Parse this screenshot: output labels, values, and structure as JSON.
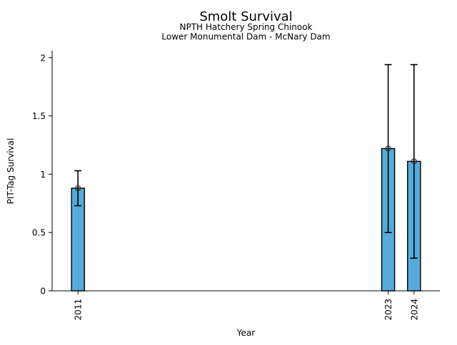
{
  "window": {
    "background": "#ffffff"
  },
  "chart_data": {
    "type": "bar",
    "title": "Smolt Survival",
    "subtitle_line1": "NPTH Hatchery Spring Chinook",
    "subtitle_line2": "Lower Monumental Dam - McNary Dam",
    "xlabel": "Year",
    "ylabel": "PIT-Tag Survival",
    "categories": [
      2011,
      2023,
      2024
    ],
    "xtick_labels": [
      "2011",
      "2023",
      "2024"
    ],
    "values": [
      0.88,
      1.22,
      1.11
    ],
    "error_low": [
      0.73,
      0.5,
      0.28
    ],
    "error_high": [
      1.03,
      1.94,
      1.94
    ],
    "xlim": [
      2010,
      2025
    ],
    "ylim": [
      0,
      2.06
    ],
    "yticks": [
      0,
      0.5,
      1,
      1.5,
      2
    ],
    "ytick_labels": [
      "0",
      "0.5",
      "1",
      "1.5",
      "2"
    ],
    "bar_width_years": 0.5,
    "marker": "open-circle",
    "grid": false,
    "legend_position": "none",
    "colors": {
      "bar_fill": "#55ABD9",
      "bar_edge": "#000000",
      "error_bar": "#000000",
      "marker_edge": "#2e2e2e",
      "axis": "#000000",
      "text": "#000000"
    }
  }
}
